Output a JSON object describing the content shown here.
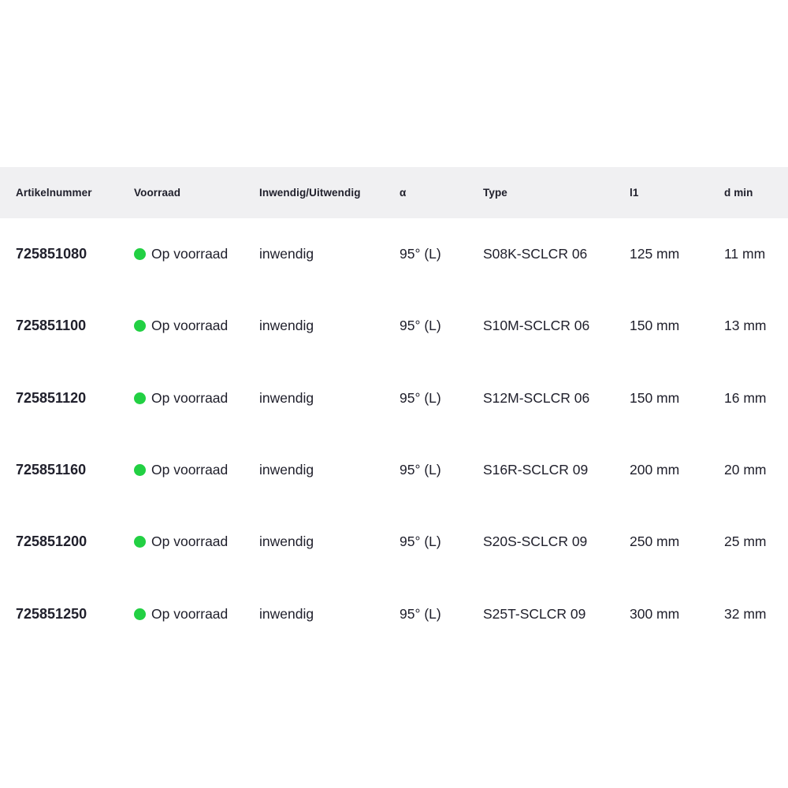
{
  "table": {
    "columns": [
      {
        "key": "artikelnummer",
        "label": "Artikelnummer"
      },
      {
        "key": "voorraad",
        "label": "Voorraad"
      },
      {
        "key": "inwendig_uitwendig",
        "label": "Inwendig/Uitwendig"
      },
      {
        "key": "alpha",
        "label": "α"
      },
      {
        "key": "type",
        "label": "Type"
      },
      {
        "key": "l1",
        "label": "l1"
      },
      {
        "key": "d_min",
        "label": "d min"
      }
    ],
    "rows": [
      {
        "artikelnummer": "725851080",
        "voorraad": "Op voorraad",
        "in_stock": true,
        "inwendig_uitwendig": "inwendig",
        "alpha": "95° (L)",
        "type": "S08K-SCLCR 06",
        "l1": "125 mm",
        "d_min": "11 mm"
      },
      {
        "artikelnummer": "725851100",
        "voorraad": "Op voorraad",
        "in_stock": true,
        "inwendig_uitwendig": "inwendig",
        "alpha": "95° (L)",
        "type": "S10M-SCLCR 06",
        "l1": "150 mm",
        "d_min": "13 mm"
      },
      {
        "artikelnummer": "725851120",
        "voorraad": "Op voorraad",
        "in_stock": true,
        "inwendig_uitwendig": "inwendig",
        "alpha": "95° (L)",
        "type": "S12M-SCLCR 06",
        "l1": "150 mm",
        "d_min": "16 mm"
      },
      {
        "artikelnummer": "725851160",
        "voorraad": "Op voorraad",
        "in_stock": true,
        "inwendig_uitwendig": "inwendig",
        "alpha": "95° (L)",
        "type": "S16R-SCLCR 09",
        "l1": "200 mm",
        "d_min": "20 mm"
      },
      {
        "artikelnummer": "725851200",
        "voorraad": "Op voorraad",
        "in_stock": true,
        "inwendig_uitwendig": "inwendig",
        "alpha": "95° (L)",
        "type": "S20S-SCLCR 09",
        "l1": "250 mm",
        "d_min": "25 mm"
      },
      {
        "artikelnummer": "725851250",
        "voorraad": "Op voorraad",
        "in_stock": true,
        "inwendig_uitwendig": "inwendig",
        "alpha": "95° (L)",
        "type": "S25T-SCLCR 09",
        "l1": "300 mm",
        "d_min": "32 mm"
      }
    ]
  },
  "icons": {
    "in_stock_dot": "in-stock-dot-icon"
  },
  "colors": {
    "status_green": "#22d043",
    "header_bg": "#f0f0f2",
    "text": "#20202c"
  }
}
